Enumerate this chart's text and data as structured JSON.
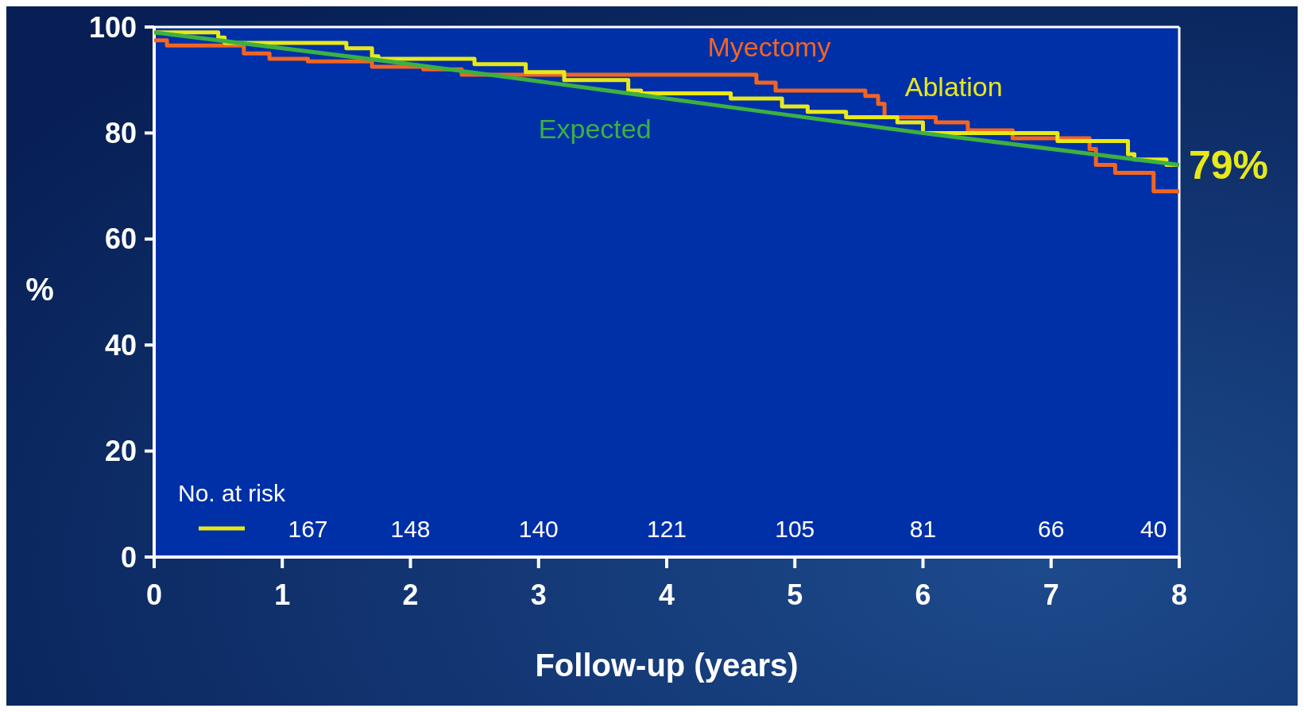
{
  "chart_data": {
    "type": "step",
    "xlabel": "Follow-up (years)",
    "ylabel": "%",
    "xlim": [
      0,
      8
    ],
    "ylim": [
      0,
      100
    ],
    "xticks": [
      0,
      1,
      2,
      3,
      4,
      5,
      6,
      7,
      8
    ],
    "yticks": [
      0,
      20,
      40,
      60,
      80,
      100
    ],
    "grid": false,
    "series": [
      {
        "name": "Myectomy",
        "color": "#f26522",
        "x": [
          0,
          0.1,
          0.7,
          0.9,
          1.2,
          1.7,
          2.1,
          2.4,
          3.0,
          4.7,
          4.85,
          5.55,
          5.65,
          5.7,
          6.1,
          6.35,
          6.7,
          7.3,
          7.35,
          7.5,
          7.8,
          8
        ],
        "values": [
          97.5,
          96.5,
          95,
          94,
          93.5,
          92.5,
          92,
          91,
          91,
          89.5,
          88,
          87,
          85.5,
          83,
          82,
          80.5,
          79,
          77,
          74,
          72.5,
          69,
          69
        ]
      },
      {
        "name": "Ablation",
        "color": "#e8e81a",
        "x": [
          0,
          0.5,
          0.55,
          1.5,
          1.7,
          1.75,
          2.5,
          2.9,
          3.2,
          3.7,
          3.8,
          4.5,
          4.9,
          5.1,
          5.4,
          5.8,
          6.0,
          6.7,
          7.05,
          7.6,
          7.65,
          7.9,
          8
        ],
        "values": [
          99,
          98,
          97,
          96,
          94.5,
          94,
          93,
          91.5,
          90,
          88,
          87.5,
          86.5,
          85,
          84,
          83,
          82,
          80,
          80,
          78.5,
          76,
          75,
          74,
          74
        ]
      },
      {
        "name": "Expected",
        "type": "line",
        "color": "#3cb043",
        "x": [
          0,
          2,
          4,
          6,
          8
        ],
        "values": [
          99,
          93,
          86.5,
          80,
          74
        ]
      }
    ],
    "annotations": [
      "79%",
      "No. at risk",
      "167",
      "148",
      "140",
      "121",
      "105",
      "81",
      "66",
      "40"
    ]
  }
}
